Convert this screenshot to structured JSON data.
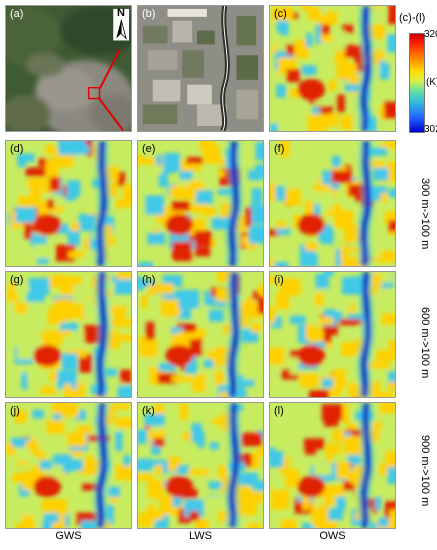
{
  "panels": {
    "a": "(a)",
    "b": "(b)",
    "c": "(c)",
    "d": "(d)",
    "e": "(e)",
    "f": "(f)",
    "g": "(g)",
    "h": "(h)",
    "i": "(i)",
    "j": "(j)",
    "k": "(k)",
    "l": "(l)"
  },
  "north_label": "N",
  "colorbar": {
    "title": "(c)-(l)",
    "max": "320",
    "unit": "(K)",
    "min": "302"
  },
  "rows": {
    "r300": "300 m->100 m",
    "r600": "600 m->100 m",
    "r900": "900 m->100 m"
  },
  "columns": {
    "gws": "GWS",
    "lws": "LWS",
    "ows": "OWS"
  },
  "colors": {
    "hot": "#e02000",
    "warm": "#ffd000",
    "mild": "#c8ec60",
    "cool": "#40c8e8",
    "cold": "#1030c8",
    "zoom_box": "#e00000"
  }
}
